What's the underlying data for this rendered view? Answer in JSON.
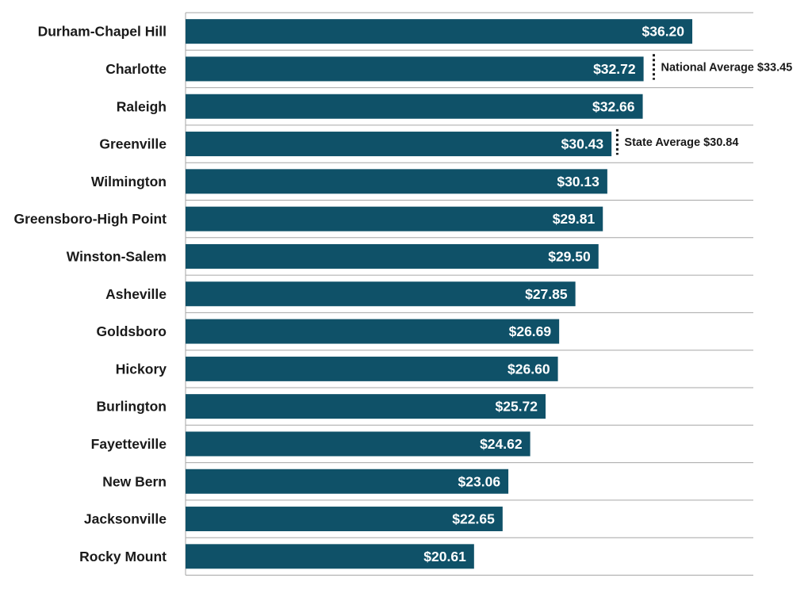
{
  "colors": {
    "bar": "#0f5168",
    "grid": "#a6a6a6",
    "text": "#1a1a1a",
    "value_text": "#ffffff"
  },
  "chart_data": {
    "type": "bar",
    "orientation": "horizontal",
    "title": "",
    "xlabel": "",
    "ylabel": "",
    "xlim": [
      0,
      40.56
    ],
    "grid": true,
    "value_prefix": "$",
    "categories": [
      "Durham-Chapel Hill",
      "Charlotte",
      "Raleigh",
      "Greenville",
      "Wilmington",
      "Greensboro-High Point",
      "Winston-Salem",
      "Asheville",
      "Goldsboro",
      "Hickory",
      "Burlington",
      "Fayetteville",
      "New Bern",
      "Jacksonville",
      "Rocky Mount"
    ],
    "values": [
      36.2,
      32.72,
      32.66,
      30.43,
      30.13,
      29.81,
      29.5,
      27.85,
      26.69,
      26.6,
      25.72,
      24.62,
      23.06,
      22.65,
      20.61
    ],
    "value_labels": [
      "$36.20",
      "$32.72",
      "$32.66",
      "$30.43",
      "$30.13",
      "$29.81",
      "$29.50",
      "$27.85",
      "$26.69",
      "$26.60",
      "$25.72",
      "$24.62",
      "$23.06",
      "$22.65",
      "$20.61"
    ],
    "reference_lines": [
      {
        "label": "National Average $33.45",
        "value": 33.45,
        "row": "Charlotte"
      },
      {
        "label": "State Average $30.84",
        "value": 30.84,
        "row": "Greenville"
      }
    ]
  }
}
